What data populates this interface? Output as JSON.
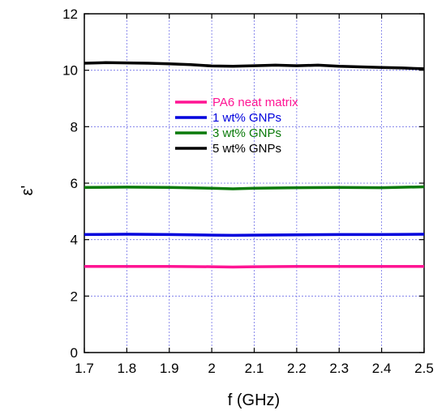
{
  "chart_data": {
    "type": "line",
    "xlabel": "f (GHz)",
    "ylabel": "ε'",
    "xlim": [
      1.7,
      2.5
    ],
    "ylim": [
      0,
      12
    ],
    "xticks": [
      "1.7",
      "1.8",
      "1.9",
      "2",
      "2.1",
      "2.2",
      "2.3",
      "2.4",
      "2.5"
    ],
    "yticks": [
      "0",
      "2",
      "4",
      "6",
      "8",
      "10",
      "12"
    ],
    "grid": true,
    "legend_position": "center",
    "series": [
      {
        "name": "PA6 neat matrix",
        "color": "#ff1493",
        "x": [
          1.7,
          1.8,
          1.9,
          2.0,
          2.05,
          2.1,
          2.2,
          2.3,
          2.4,
          2.5
        ],
        "y": [
          3.05,
          3.05,
          3.05,
          3.04,
          3.03,
          3.04,
          3.05,
          3.05,
          3.05,
          3.05
        ]
      },
      {
        "name": "1 wt% GNPs",
        "color": "#0000dd",
        "x": [
          1.7,
          1.8,
          1.9,
          2.0,
          2.05,
          2.1,
          2.2,
          2.3,
          2.4,
          2.5
        ],
        "y": [
          4.18,
          4.19,
          4.18,
          4.16,
          4.15,
          4.16,
          4.17,
          4.18,
          4.18,
          4.19
        ]
      },
      {
        "name": "3 wt% GNPs",
        "color": "#0a7a0a",
        "x": [
          1.7,
          1.8,
          1.9,
          2.0,
          2.05,
          2.1,
          2.2,
          2.3,
          2.4,
          2.5
        ],
        "y": [
          5.85,
          5.86,
          5.85,
          5.82,
          5.8,
          5.82,
          5.84,
          5.85,
          5.84,
          5.87
        ]
      },
      {
        "name": "5 wt% GNPs",
        "color": "#000000",
        "x": [
          1.7,
          1.75,
          1.8,
          1.85,
          1.9,
          1.95,
          2.0,
          2.05,
          2.1,
          2.15,
          2.2,
          2.25,
          2.3,
          2.35,
          2.4,
          2.45,
          2.5
        ],
        "y": [
          10.25,
          10.27,
          10.26,
          10.25,
          10.23,
          10.2,
          10.15,
          10.14,
          10.16,
          10.18,
          10.16,
          10.18,
          10.14,
          10.12,
          10.1,
          10.08,
          10.05
        ]
      }
    ]
  }
}
